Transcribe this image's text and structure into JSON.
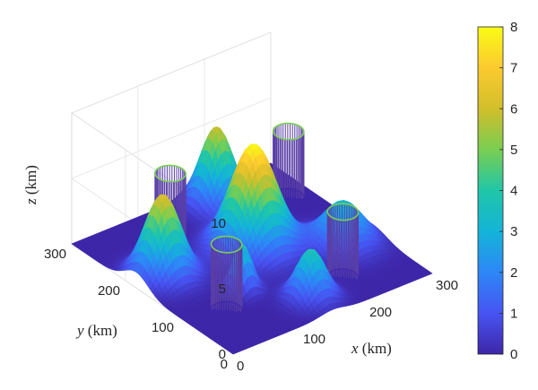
{
  "chart_data": {
    "type": "surface3d",
    "title": "",
    "x_axis": {
      "label_var": "x",
      "label_unit": "(km)",
      "range": [
        0,
        300
      ],
      "ticks": [
        "0",
        "100",
        "200",
        "300"
      ]
    },
    "y_axis": {
      "label_var": "y",
      "label_unit": "(km)",
      "range": [
        0,
        300
      ],
      "ticks": [
        "0",
        "100",
        "200",
        "300"
      ]
    },
    "z_axis": {
      "label_var": "z",
      "label_unit": "(km)",
      "range": [
        0,
        10
      ],
      "ticks": [
        "0",
        "5",
        "10"
      ]
    },
    "colorbar": {
      "range": [
        0,
        8
      ],
      "ticks": [
        "0",
        "1",
        "2",
        "3",
        "4",
        "5",
        "6",
        "7",
        "8"
      ],
      "colormap": "parula"
    },
    "grid": true,
    "mountains": [
      {
        "x": 40,
        "y": 180,
        "height": 6.3,
        "sigma": 22
      },
      {
        "x": 165,
        "y": 165,
        "height": 8.0,
        "sigma": 28
      },
      {
        "x": 190,
        "y": 265,
        "height": 6.0,
        "sigma": 20
      },
      {
        "x": 255,
        "y": 110,
        "height": 3.3,
        "sigma": 25
      },
      {
        "x": 95,
        "y": 100,
        "height": 3.6,
        "sigma": 12
      },
      {
        "x": 150,
        "y": 40,
        "height": 3.8,
        "sigma": 18
      }
    ],
    "cylinders": [
      {
        "x": 100,
        "y": 240,
        "radius": 18,
        "height": 5.0
      },
      {
        "x": 270,
        "y": 230,
        "radius": 18,
        "height": 5.0
      },
      {
        "x": 55,
        "y": 80,
        "radius": 18,
        "height": 5.0
      },
      {
        "x": 210,
        "y": 55,
        "radius": 18,
        "height": 5.0
      }
    ]
  }
}
